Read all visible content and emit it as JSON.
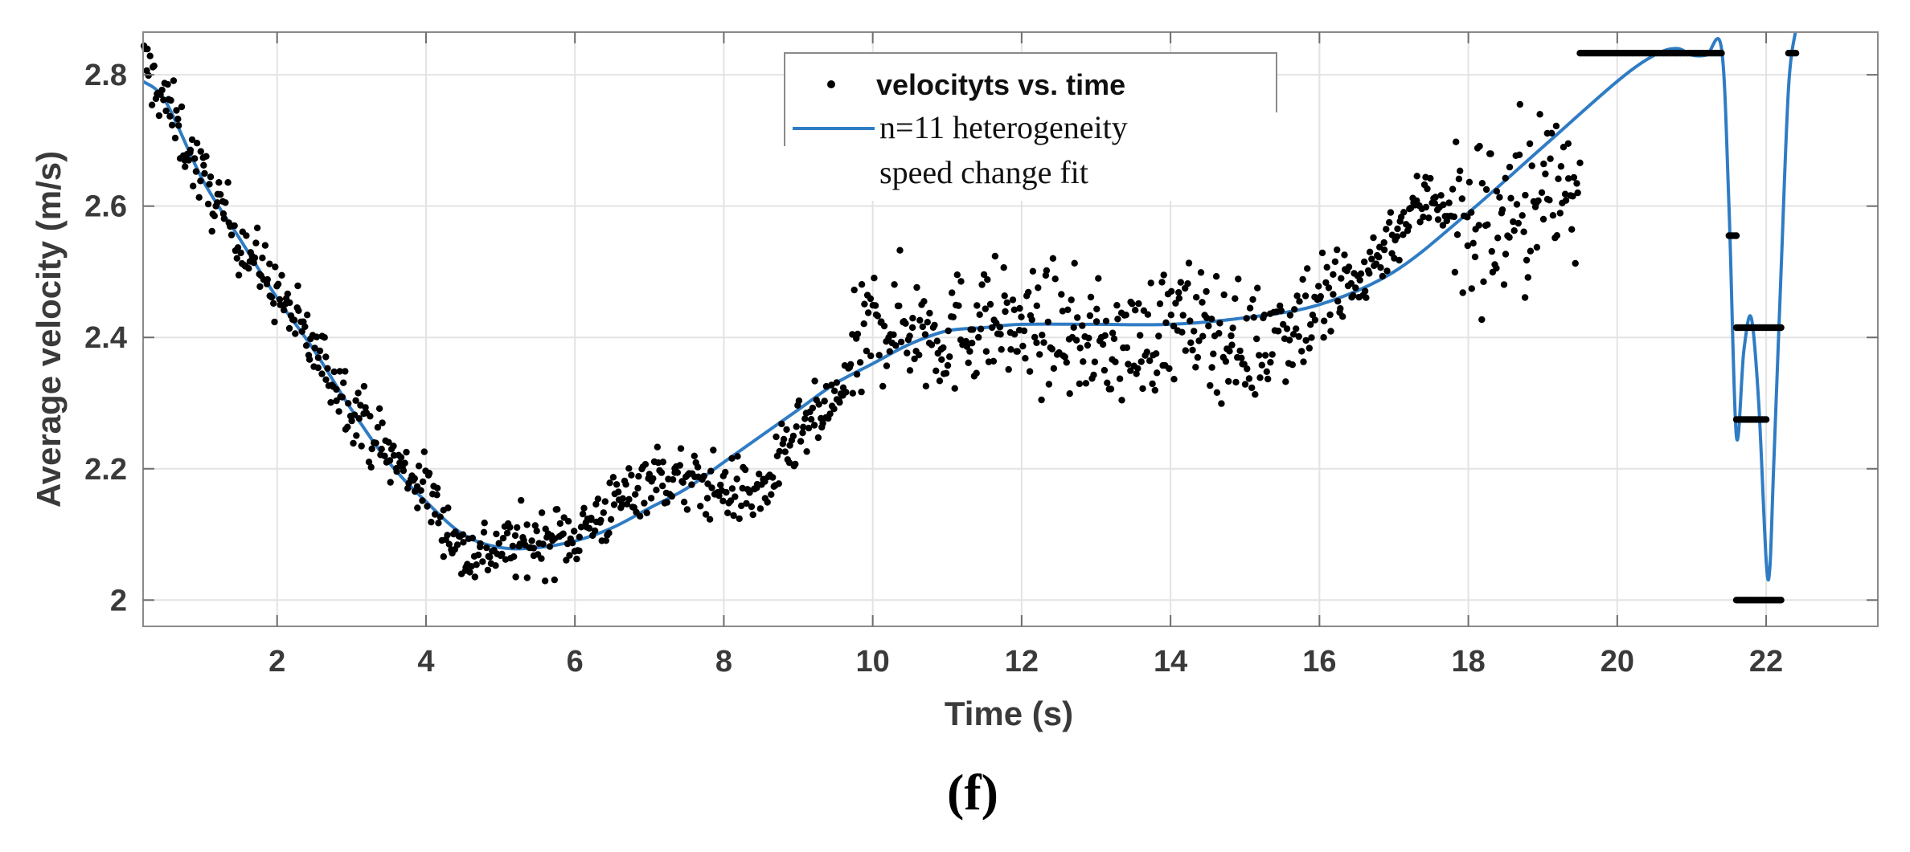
{
  "chart_data": {
    "type": "scatter",
    "xlabel": "Time (s)",
    "ylabel": "Average velocity (m/s)",
    "xlim": [
      0.2,
      23.5
    ],
    "ylim": [
      1.96,
      2.865
    ],
    "xticks": [
      2,
      4,
      6,
      8,
      10,
      12,
      14,
      16,
      18,
      20,
      22
    ],
    "yticks": [
      2,
      2.2,
      2.4,
      2.6,
      2.8
    ],
    "ytick_labels": [
      "2",
      "2.2",
      "2.4",
      "2.6",
      "2.8"
    ],
    "grid": true,
    "legend_position": "top-center",
    "caption": "(f)",
    "series": [
      {
        "name": "velocityts vs. time",
        "kind": "scatter",
        "color": "#000000",
        "trend": {
          "x": [
            0.2,
            0.5,
            1.0,
            1.5,
            2.0,
            2.5,
            3.0,
            3.5,
            4.0,
            4.5,
            5.0,
            5.5,
            6.0,
            6.5,
            7.0,
            7.5,
            8.0,
            8.5,
            9.0,
            9.5,
            10.0,
            10.5,
            11.0,
            11.5,
            12.0,
            12.5,
            13.0,
            13.5,
            14.0,
            14.5,
            15.0,
            15.5,
            16.0,
            16.5,
            17.0,
            17.5,
            18.0,
            18.5,
            19.0,
            19.5
          ],
          "y": [
            2.82,
            2.76,
            2.64,
            2.55,
            2.47,
            2.38,
            2.3,
            2.22,
            2.17,
            2.07,
            2.08,
            2.09,
            2.1,
            2.14,
            2.19,
            2.18,
            2.17,
            2.16,
            2.25,
            2.3,
            2.42,
            2.42,
            2.4,
            2.43,
            2.41,
            2.41,
            2.39,
            2.39,
            2.42,
            2.42,
            2.38,
            2.42,
            2.45,
            2.48,
            2.56,
            2.62,
            2.57,
            2.58,
            2.62,
            2.64
          ]
        },
        "clusters": [
          {
            "x_range": [
              19.5,
              21.4
            ],
            "y": 2.833
          },
          {
            "x_range": [
              21.6,
              22.2
            ],
            "y": 2.0
          },
          {
            "x_range": [
              21.6,
              22.2
            ],
            "y": 2.415
          },
          {
            "x_range": [
              21.6,
              22.0
            ],
            "y": 2.275
          },
          {
            "x_range": [
              21.5,
              21.6
            ],
            "y": 2.555
          },
          {
            "x_range": [
              22.3,
              22.4
            ],
            "y": 2.833
          }
        ]
      },
      {
        "name": "n=11 heterogeneity speed change fit",
        "legend_lines": [
          "n=11 heterogeneity",
          "speed change fit"
        ],
        "kind": "line",
        "color": "#2f7cc4",
        "x": [
          0.2,
          0.5,
          1.0,
          1.5,
          2.0,
          2.5,
          3.0,
          3.5,
          4.0,
          4.5,
          5.0,
          5.5,
          6.0,
          6.5,
          7.0,
          7.5,
          8.0,
          8.5,
          9.0,
          9.5,
          10.0,
          10.5,
          11.0,
          11.5,
          12.0,
          13.0,
          14.0,
          15.0,
          16.0,
          17.0,
          18.0,
          19.0,
          20.0,
          20.5,
          20.8,
          21.0,
          21.2,
          21.4,
          21.5,
          21.6,
          21.7,
          21.8,
          21.9,
          22.0,
          22.05,
          22.1,
          22.2,
          22.3,
          22.4
        ],
        "y": [
          2.79,
          2.76,
          2.64,
          2.55,
          2.46,
          2.38,
          2.29,
          2.21,
          2.15,
          2.1,
          2.08,
          2.08,
          2.09,
          2.11,
          2.14,
          2.17,
          2.21,
          2.25,
          2.29,
          2.33,
          2.36,
          2.39,
          2.41,
          2.415,
          2.42,
          2.42,
          2.42,
          2.43,
          2.45,
          2.5,
          2.59,
          2.69,
          2.79,
          2.83,
          2.84,
          2.83,
          2.83,
          2.84,
          2.6,
          2.25,
          2.38,
          2.43,
          2.3,
          2.06,
          2.05,
          2.2,
          2.5,
          2.78,
          2.87
        ]
      }
    ]
  }
}
